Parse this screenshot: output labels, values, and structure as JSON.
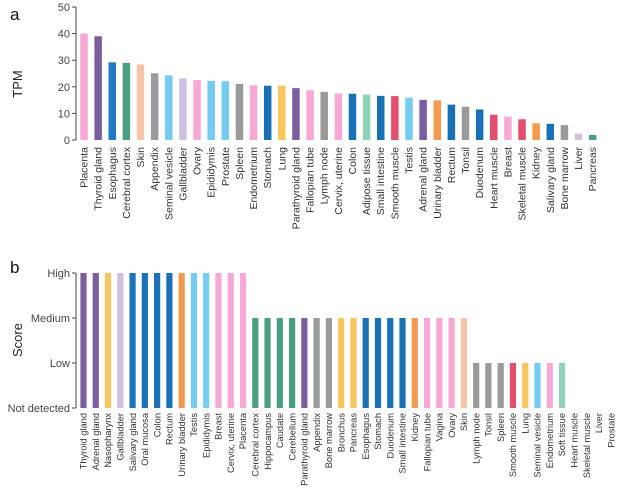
{
  "colors": {
    "pink": "#f7a8d4",
    "purple": "#7b5ea0",
    "blue": "#1e7bc4",
    "green": "#4b9e80",
    "peach": "#f6c4a6",
    "grey": "#9a9a9a",
    "lightblue": "#74ccf2",
    "lavender": "#cfc0e2",
    "darkblue": "#1971b8",
    "yellow": "#f7c65c",
    "orange": "#f29a4e",
    "mint": "#8ed3b8",
    "red": "#e44d6b"
  },
  "chart_data": [
    {
      "panel": "a",
      "type": "bar",
      "ylabel": "TPM",
      "ylim": [
        0,
        50
      ],
      "yticks": [
        "0",
        "10",
        "20",
        "30",
        "40",
        "50"
      ],
      "categories": [
        "Placenta",
        "Thyroid gland",
        "Esophagus",
        "Cerebral cortex",
        "Skin",
        "Appendix",
        "Seminal vesicle",
        "Gallbladder",
        "Ovary",
        "Epididymis",
        "Prostate",
        "Spleen",
        "Endometrium",
        "Stomach",
        "Lung",
        "Parathyroid gland",
        "Fallopian tube",
        "Lymph node",
        "Cervix, uterine",
        "Colon",
        "Adipose tissue",
        "Small intestine",
        "Smooth muscle",
        "Testis",
        "Adrenal gland",
        "Urinary bladder",
        "Rectum",
        "Tonsil",
        "Duodenum",
        "Heart muscle",
        "Breast",
        "Skeletal muscle",
        "Kidney",
        "Salivary gland",
        "Bone marrow",
        "Liver",
        "Pancreas"
      ],
      "values": [
        40,
        39,
        29.2,
        29,
        28.4,
        25.1,
        24.3,
        23.2,
        22.5,
        22.2,
        22.1,
        21.1,
        20.6,
        20.4,
        20.4,
        19.5,
        18.7,
        18.1,
        17.5,
        17.4,
        17.1,
        16.6,
        16.5,
        15.9,
        15.1,
        14.9,
        13.3,
        12.5,
        11.5,
        9.5,
        8.8,
        7.8,
        6.3,
        6.1,
        5.6,
        2.4,
        1.9
      ],
      "colors": [
        "pink",
        "purple",
        "blue",
        "green",
        "peach",
        "grey",
        "lightblue",
        "lavender",
        "pink",
        "lightblue",
        "lightblue",
        "grey",
        "pink",
        "darkblue",
        "yellow",
        "purple",
        "pink",
        "grey",
        "pink",
        "darkblue",
        "mint",
        "darkblue",
        "red",
        "lightblue",
        "purple",
        "orange",
        "darkblue",
        "grey",
        "darkblue",
        "red",
        "pink",
        "red",
        "orange",
        "darkblue",
        "grey",
        "lavender",
        "green"
      ]
    },
    {
      "panel": "b",
      "type": "bar",
      "ylabel": "Score",
      "levels": [
        "Not detected",
        "Low",
        "Medium",
        "High"
      ],
      "categories": [
        "Thyroid gland",
        "Adrenal gland",
        "Nasopharynx",
        "Gallbladder",
        "Salivary gland",
        "Oral mucosa",
        "Colon",
        "Rectum",
        "Urinary bladder",
        "Testis",
        "Epididymis",
        "Breast",
        "Cervix, uterine",
        "Placenta",
        "Cerebral cortex",
        "Hippocampus",
        "Caudate",
        "Cerebellum",
        "Parathyroid gland",
        "Appendix",
        "Bone marrow",
        "Bronchus",
        "Pancreas",
        "Esophagus",
        "Stomach",
        "Duodenum",
        "Small intestine",
        "Kidney",
        "Fallopian tube",
        "Vagina",
        "Ovary",
        "Skin",
        "Lymph node",
        "Tonsil",
        "Spleen",
        "Smooth muscle",
        "Lung",
        "Seminal vesicle",
        "Endometrium",
        "Soft tissue",
        "Heart muscle",
        "Skeletal muscle",
        "Liver",
        "Prostate"
      ],
      "values": [
        3,
        3,
        3,
        3,
        3,
        3,
        3,
        3,
        3,
        3,
        3,
        3,
        3,
        3,
        2,
        2,
        2,
        2,
        2,
        2,
        2,
        2,
        2,
        2,
        2,
        2,
        2,
        2,
        2,
        2,
        2,
        2,
        1,
        1,
        1,
        1,
        1,
        1,
        1,
        1,
        0,
        0,
        0,
        0
      ],
      "colors": [
        "purple",
        "purple",
        "yellow",
        "lavender",
        "darkblue",
        "darkblue",
        "darkblue",
        "darkblue",
        "orange",
        "lightblue",
        "lightblue",
        "pink",
        "pink",
        "pink",
        "green",
        "green",
        "green",
        "green",
        "purple",
        "grey",
        "grey",
        "yellow",
        "yellow",
        "darkblue",
        "darkblue",
        "darkblue",
        "darkblue",
        "orange",
        "pink",
        "pink",
        "pink",
        "peach",
        "grey",
        "grey",
        "grey",
        "red",
        "yellow",
        "lightblue",
        "pink",
        "mint",
        "red",
        "red",
        "lavender",
        "lightblue"
      ]
    }
  ]
}
